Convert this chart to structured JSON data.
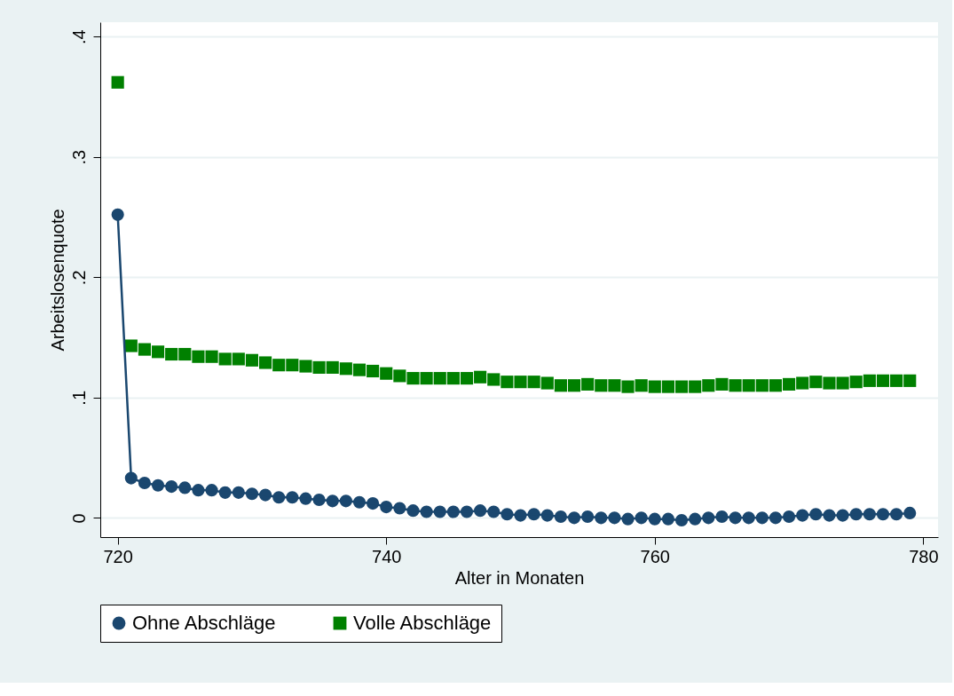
{
  "chart_data": {
    "type": "line",
    "xlabel": "Alter in Monaten",
    "ylabel": "Arbeitslosenquote",
    "x": [
      720,
      721,
      722,
      723,
      724,
      725,
      726,
      727,
      728,
      729,
      730,
      731,
      732,
      733,
      734,
      735,
      736,
      737,
      738,
      739,
      740,
      741,
      742,
      743,
      744,
      745,
      746,
      747,
      748,
      749,
      750,
      751,
      752,
      753,
      754,
      755,
      756,
      757,
      758,
      759,
      760,
      761,
      762,
      763,
      764,
      765,
      766,
      767,
      768,
      769,
      770,
      771,
      772,
      773,
      774,
      775,
      776,
      777,
      778,
      779
    ],
    "series": [
      {
        "name": "Ohne Abschläge",
        "marker": "circle",
        "line_style": "solid",
        "color": "#1a476f",
        "values": [
          0.252,
          0.033,
          0.029,
          0.027,
          0.026,
          0.025,
          0.023,
          0.023,
          0.021,
          0.021,
          0.02,
          0.019,
          0.017,
          0.017,
          0.016,
          0.015,
          0.014,
          0.014,
          0.013,
          0.012,
          0.009,
          0.008,
          0.006,
          0.005,
          0.005,
          0.005,
          0.005,
          0.006,
          0.005,
          0.003,
          0.002,
          0.003,
          0.002,
          0.001,
          0.0,
          0.001,
          0.0,
          0.0,
          -0.001,
          0.0,
          -0.001,
          -0.001,
          -0.002,
          -0.001,
          0.0,
          0.001,
          0.0,
          0.0,
          0.0,
          0.0,
          0.001,
          0.002,
          0.003,
          0.002,
          0.002,
          0.003,
          0.003,
          0.003,
          0.003,
          0.004
        ]
      },
      {
        "name": "Volle Abschläge",
        "type": "scatter",
        "marker": "square",
        "color": "#008000",
        "values": [
          0.362,
          0.143,
          0.14,
          0.138,
          0.136,
          0.136,
          0.134,
          0.134,
          0.132,
          0.132,
          0.131,
          0.129,
          0.127,
          0.127,
          0.126,
          0.125,
          0.125,
          0.124,
          0.123,
          0.122,
          0.12,
          0.118,
          0.116,
          0.116,
          0.116,
          0.116,
          0.116,
          0.117,
          0.115,
          0.113,
          0.113,
          0.113,
          0.112,
          0.11,
          0.11,
          0.111,
          0.11,
          0.11,
          0.109,
          0.11,
          0.109,
          0.109,
          0.109,
          0.109,
          0.11,
          0.111,
          0.11,
          0.11,
          0.11,
          0.11,
          0.111,
          0.112,
          0.113,
          0.112,
          0.112,
          0.113,
          0.114,
          0.114,
          0.114,
          0.114
        ]
      }
    ],
    "xlim": [
      718.7,
      781.1
    ],
    "xticks": [
      720,
      740,
      760,
      780
    ],
    "ylim": [
      -0.016,
      0.412
    ],
    "yticks": [
      0,
      {
        "value": 0.1,
        "label": ".1"
      },
      {
        "value": 0.2,
        "label": ".2"
      },
      {
        "value": 0.3,
        "label": ".3"
      },
      {
        "value": 0.4,
        "label": ".4"
      }
    ],
    "grid": "y",
    "legend": "bottom"
  }
}
